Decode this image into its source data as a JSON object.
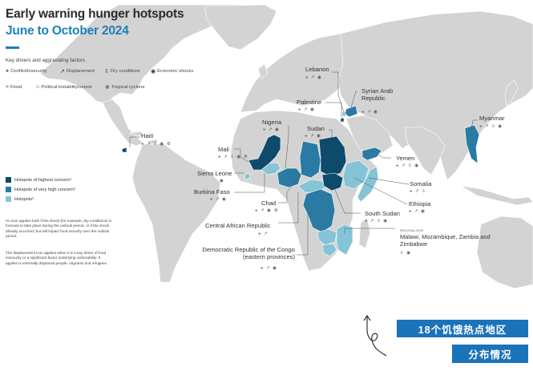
{
  "title": "Early warning hunger hotspots",
  "subtitle": "June to October 2024",
  "drivers_heading": "Key drivers and aggravating factors",
  "drivers": [
    {
      "icon": "conflict-icon",
      "label": "Conflict/insecurity"
    },
    {
      "icon": "displacement-icon",
      "label": "Displacement"
    },
    {
      "icon": "dry-conditions-icon",
      "label": "Dry conditions"
    },
    {
      "icon": "economic-shocks-icon",
      "label": "Economic shocks"
    },
    {
      "icon": "flood-icon",
      "label": "Flood"
    },
    {
      "icon": "political-instability-icon",
      "label": "Political instability/unrest"
    },
    {
      "icon": "tropical-cyclone-icon",
      "label": "Tropical cyclone"
    }
  ],
  "legend": [
    {
      "label": "Hotspots of highest concern¹",
      "color": "#0e4a6b"
    },
    {
      "label": "Hotspots of very high concern²",
      "color": "#2a7aa3"
    },
    {
      "label": "Hotspots³",
      "color": "#86c3d7"
    }
  ],
  "notes": [
    "An icon applies both if the shock (for example, dry conditions) is forecast to take place during the outlook period, or if the shock already occurred, but will impact food security over the outlook period.",
    "The displacement icon applies when it is a key driver of food insecurity or a significant factor underlying vulnerability. It applies to internally displaced people, migrants and refugees."
  ],
  "colors": {
    "ocean": "#ffffff",
    "land": "#d3d3d3",
    "border": "#ffffff",
    "highest": "#0e4a6b",
    "very_high": "#2a7aa3",
    "hotspot": "#86c3d7",
    "accent": "#1b73b9"
  },
  "countries": [
    {
      "name": "Haiti",
      "level": "highest",
      "icons": "⚹ ↗ ⇩ ◉ ⚙"
    },
    {
      "name": "Mali",
      "level": "highest",
      "icons": "⚹ ↗ ⇩ ◉ ⚙"
    },
    {
      "name": "Sierra Leone",
      "level": "hotspot",
      "icons": "◉"
    },
    {
      "name": "Burkina Faso",
      "level": "very_high",
      "icons": "⚹ ↗ ◉"
    },
    {
      "name": "Chad",
      "level": "very_high",
      "icons": "⚹ ↗ ◉ ⚙"
    },
    {
      "name": "Central African Republic",
      "level": "hotspot",
      "icons": "⚹ ↗"
    },
    {
      "name": "Democratic Republic of the Congo (eastern provinces)",
      "level": "very_high",
      "icons": "⚹ ↗ ◉"
    },
    {
      "name": "Nigeria",
      "level": "very_high",
      "icons": "⚹ ↗ ◉"
    },
    {
      "name": "Sudan",
      "level": "highest",
      "icons": "⚹ ↗ ◉"
    },
    {
      "name": "South Sudan",
      "level": "highest",
      "icons": "⚹ ↗ ⇩ ◉"
    },
    {
      "name": "Ethiopia",
      "level": "hotspot",
      "icons": "⚹ ↗ ◉"
    },
    {
      "name": "Somalia",
      "level": "hotspot",
      "icons": "⚹ ↗ ⇩"
    },
    {
      "name": "Yemen",
      "level": "very_high",
      "icons": "⚹ ↗ ⇩ ◉"
    },
    {
      "name": "Lebanon",
      "level": "hotspot",
      "icons": "⚹ ↗ ◉"
    },
    {
      "name": "Syrian Arab Republic",
      "level": "very_high",
      "icons": "⚹ ↗ ◉"
    },
    {
      "name": "Palestine",
      "level": "highest",
      "icons": "⚹ ↗ ◉"
    },
    {
      "name": "Myanmar",
      "level": "very_high",
      "icons": "⚹ ↗ ⇩ ◉"
    },
    {
      "name": "Malawi, Mozambique, Zambia and Zimbabwe",
      "level": "hotspot",
      "icons": "⇩ ◉"
    }
  ],
  "regional_note": "REGIONAL RISK",
  "buttons": {
    "hotspots_label": "18个饥饿热点地区",
    "distribution_label": "分布情况"
  }
}
